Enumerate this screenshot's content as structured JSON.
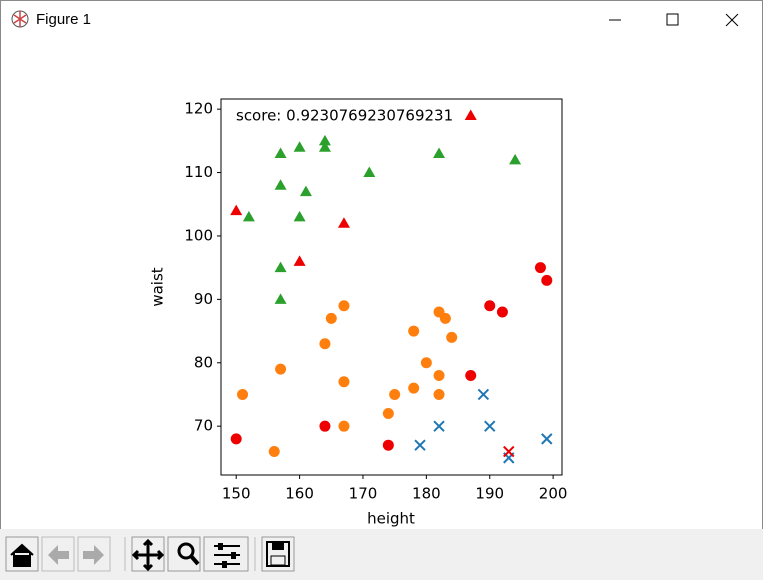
{
  "window": {
    "title": "Figure 1"
  },
  "chart_data": {
    "type": "scatter",
    "annotation": "score: 0.9230769230769231",
    "x_label": "height",
    "y_label": "waist",
    "xlim": [
      147.6,
      201.4
    ],
    "ylim": [
      62.3,
      121.6
    ],
    "xticks": [
      150,
      160,
      170,
      180,
      190,
      200
    ],
    "yticks": [
      70,
      80,
      90,
      100,
      110,
      120
    ],
    "series": [
      {
        "marker": "^",
        "color": "#2ca02c",
        "x": [
          157,
          160,
          164,
          164,
          171,
          182,
          194,
          157,
          161,
          152,
          160,
          157,
          157
        ],
        "values": [
          113,
          114,
          115,
          114,
          110,
          113,
          112,
          108,
          107,
          103,
          103,
          95,
          90
        ]
      },
      {
        "marker": "^",
        "color": "#ee0000",
        "x": [
          150,
          167,
          160,
          187
        ],
        "values": [
          104,
          102,
          96,
          119
        ]
      },
      {
        "marker": "o",
        "color": "#ff7f0e",
        "x": [
          151,
          156,
          157,
          164,
          165,
          167,
          167,
          167,
          174,
          175,
          178,
          178,
          180,
          182,
          183,
          184,
          182,
          182
        ],
        "values": [
          75,
          66,
          79,
          83,
          87,
          89,
          77,
          70,
          72,
          75,
          85,
          76,
          80,
          88,
          87,
          84,
          78,
          75
        ]
      },
      {
        "marker": "o",
        "color": "#ee0000",
        "x": [
          150,
          164,
          174,
          187,
          190,
          192,
          198,
          199
        ],
        "values": [
          68,
          70,
          67,
          78,
          89,
          88,
          95,
          93
        ]
      },
      {
        "marker": "x",
        "color": "#1f77b4",
        "x": [
          179,
          182,
          189,
          190,
          193,
          199
        ],
        "values": [
          67,
          70,
          75,
          70,
          65,
          68
        ]
      },
      {
        "marker": "x",
        "color": "#ee0000",
        "x": [
          193
        ],
        "values": [
          66
        ]
      }
    ]
  }
}
